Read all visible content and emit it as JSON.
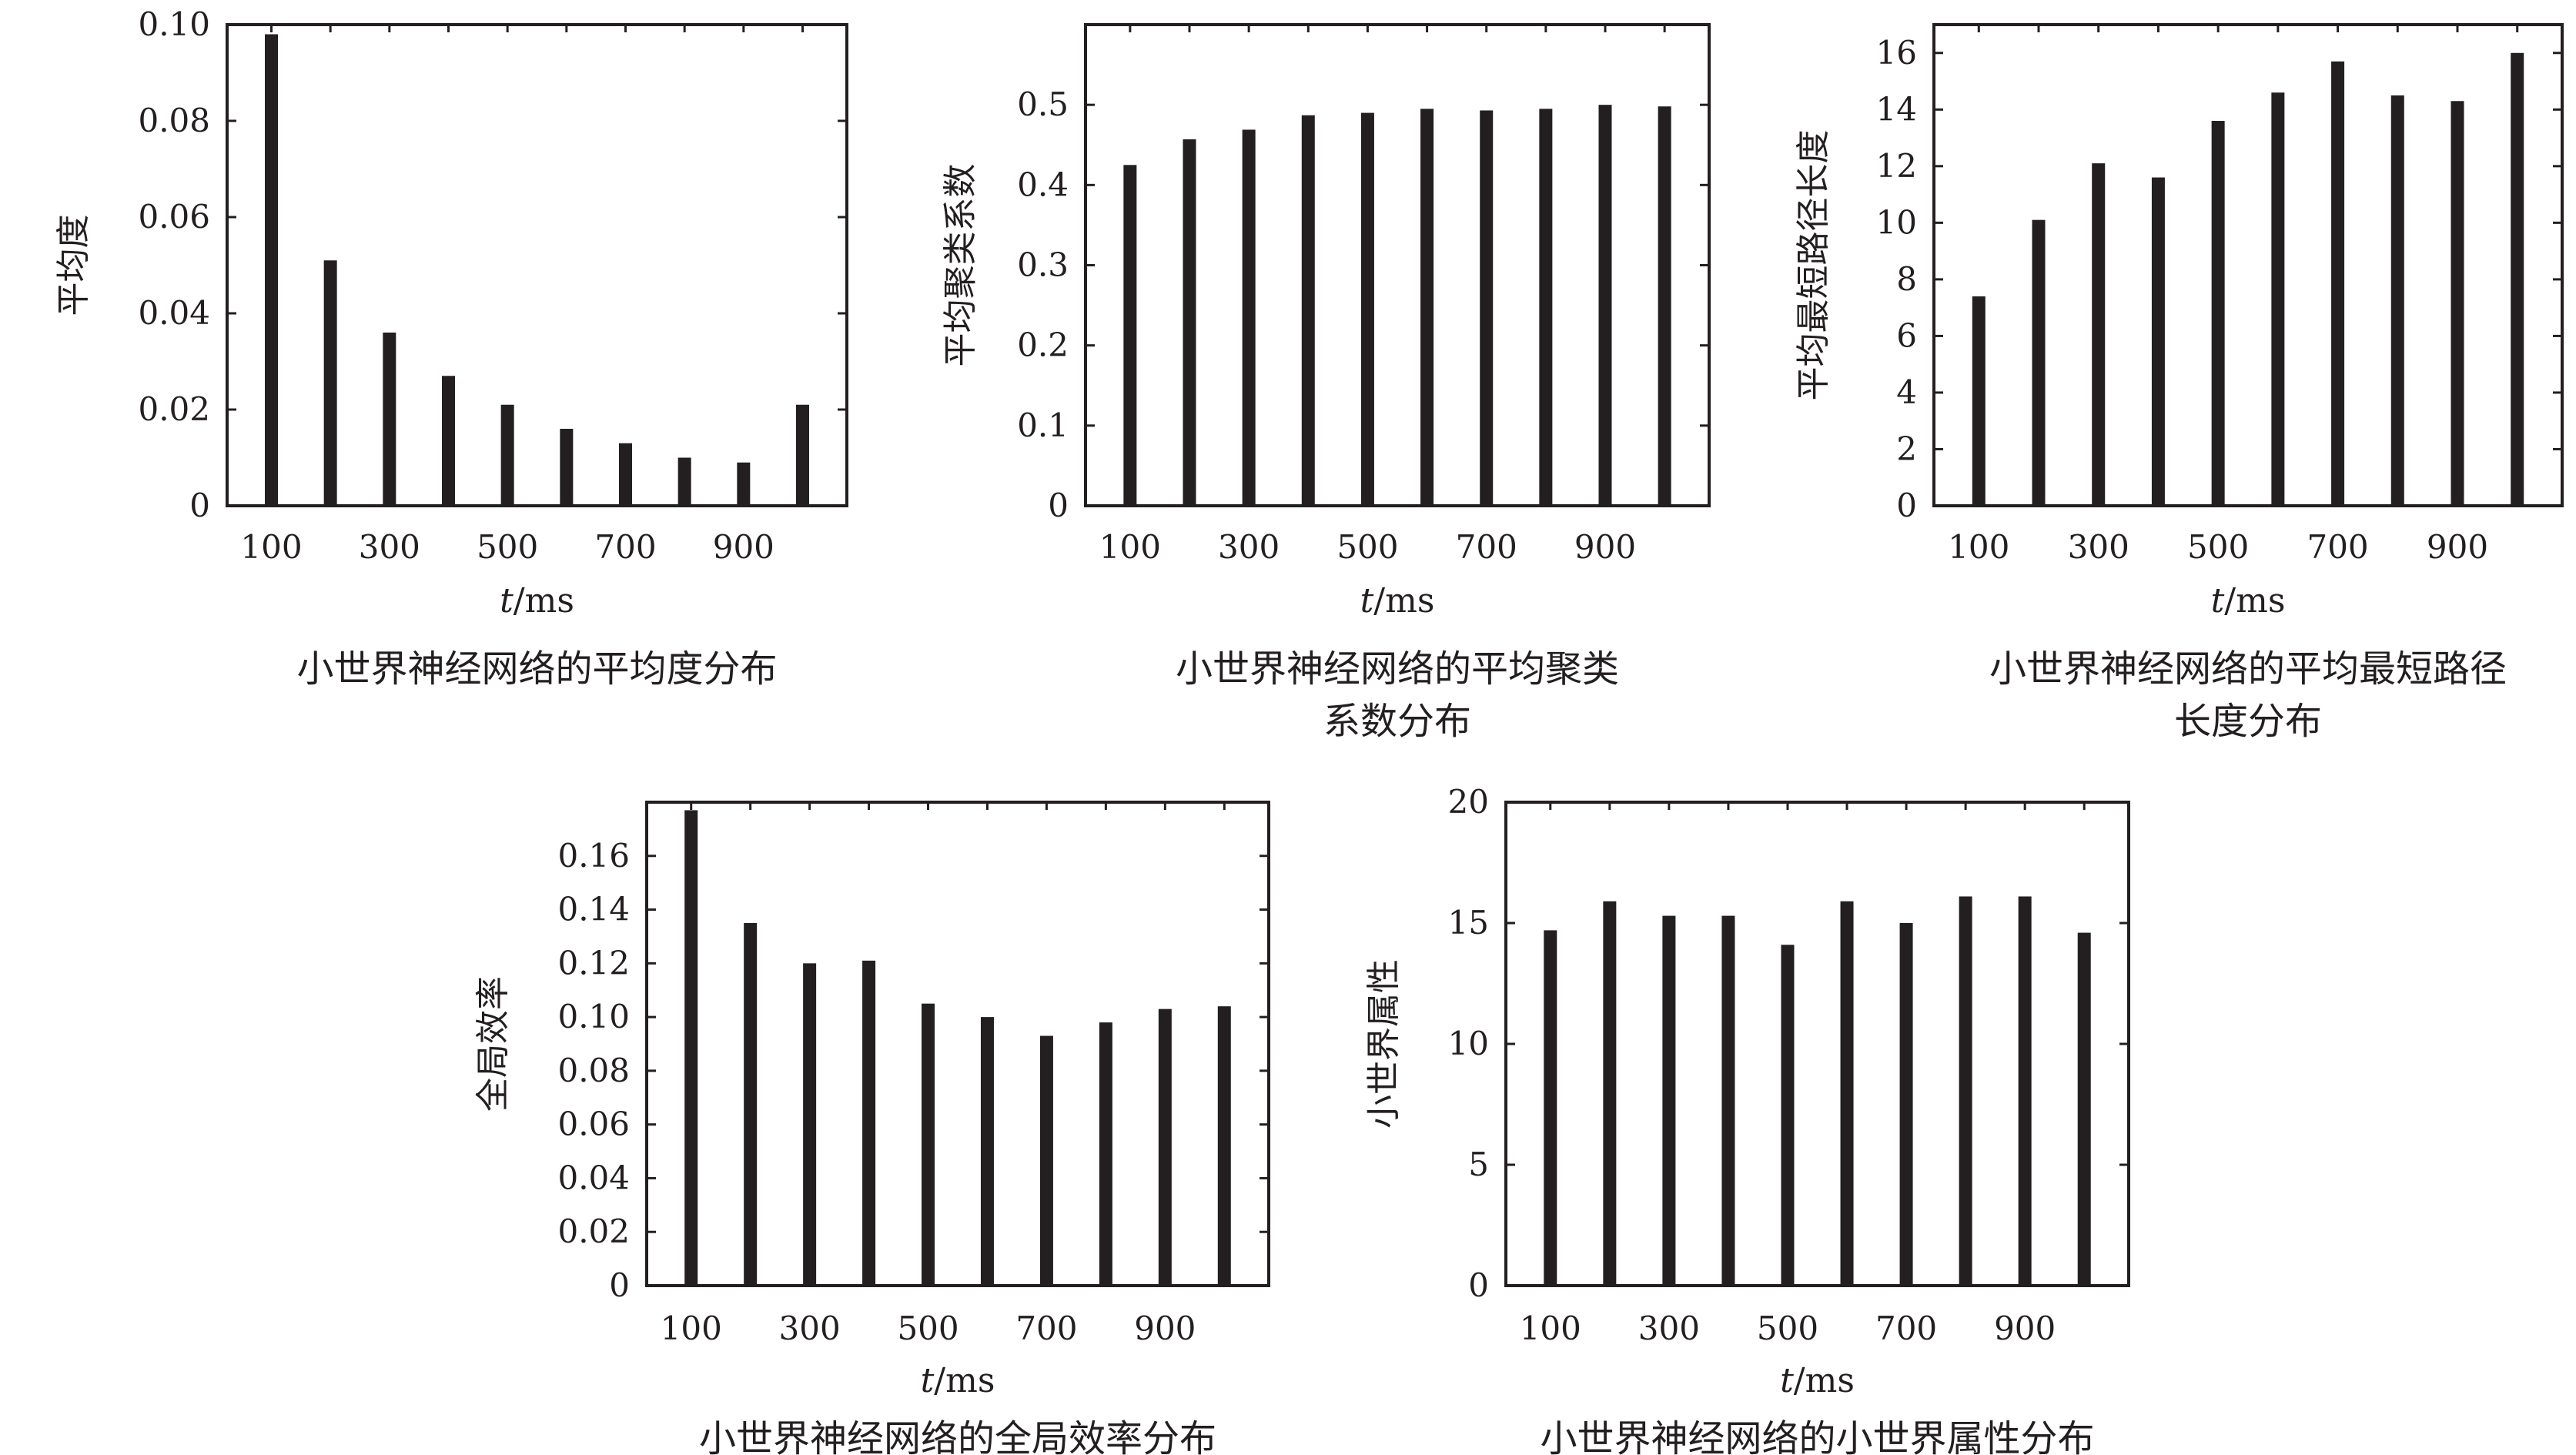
{
  "x_unit_label": {
    "t": "t",
    "unit": "/ms"
  },
  "chart_data": [
    {
      "type": "bar",
      "categories": [
        100,
        200,
        300,
        400,
        500,
        600,
        700,
        800,
        900,
        1000
      ],
      "values": [
        0.098,
        0.051,
        0.036,
        0.027,
        0.021,
        0.016,
        0.013,
        0.01,
        0.009,
        0.021
      ],
      "ylim": [
        0,
        0.1
      ],
      "yticks": [
        "0",
        "0.02",
        "0.04",
        "0.06",
        "0.08",
        "0.10"
      ],
      "xticks": [
        "100",
        "300",
        "500",
        "700",
        "900"
      ],
      "ylabel": "平均度",
      "caption": [
        "小世界神经网络的平均度分布"
      ],
      "grid": false
    },
    {
      "type": "bar",
      "categories": [
        100,
        200,
        300,
        400,
        500,
        600,
        700,
        800,
        900,
        1000
      ],
      "values": [
        0.425,
        0.457,
        0.469,
        0.487,
        0.49,
        0.495,
        0.493,
        0.495,
        0.5,
        0.498
      ],
      "ylim": [
        0,
        0.6
      ],
      "yticks": [
        "0",
        "0.1",
        "0.2",
        "0.3",
        "0.4",
        "0.5"
      ],
      "xticks": [
        "100",
        "300",
        "500",
        "700",
        "900"
      ],
      "ylabel": "平均聚类系数",
      "caption": [
        "小世界神经网络的平均聚类",
        "系数分布"
      ],
      "grid": false
    },
    {
      "type": "bar",
      "categories": [
        100,
        200,
        300,
        400,
        500,
        600,
        700,
        800,
        900,
        1000
      ],
      "values": [
        7.4,
        10.1,
        12.1,
        11.6,
        13.6,
        14.6,
        15.7,
        14.5,
        14.3,
        16.0
      ],
      "ylim": [
        0,
        17
      ],
      "yticks": [
        "0",
        "2",
        "4",
        "6",
        "8",
        "10",
        "12",
        "14",
        "16"
      ],
      "xticks": [
        "100",
        "300",
        "500",
        "700",
        "900"
      ],
      "ylabel": "平均最短路径长度",
      "caption": [
        "小世界神经网络的平均最短路径",
        "长度分布"
      ],
      "grid": false
    },
    {
      "type": "bar",
      "categories": [
        100,
        200,
        300,
        400,
        500,
        600,
        700,
        800,
        900,
        1000
      ],
      "values": [
        0.177,
        0.135,
        0.12,
        0.121,
        0.105,
        0.1,
        0.093,
        0.098,
        0.103,
        0.104
      ],
      "ylim": [
        0,
        0.18
      ],
      "yticks": [
        "0",
        "0.02",
        "0.04",
        "0.06",
        "0.08",
        "0.10",
        "0.12",
        "0.14",
        "0.16"
      ],
      "xticks": [
        "100",
        "300",
        "500",
        "700",
        "900"
      ],
      "ylabel": "全局效率",
      "caption": [
        "小世界神经网络的全局效率分布"
      ],
      "grid": false
    },
    {
      "type": "bar",
      "categories": [
        100,
        200,
        300,
        400,
        500,
        600,
        700,
        800,
        900,
        1000
      ],
      "values": [
        14.7,
        15.9,
        15.3,
        15.3,
        14.1,
        15.9,
        15.0,
        16.1,
        16.1,
        14.6
      ],
      "ylim": [
        0,
        20
      ],
      "yticks": [
        "0",
        "5",
        "10",
        "15",
        "20"
      ],
      "xticks": [
        "100",
        "300",
        "500",
        "700",
        "900"
      ],
      "ylabel": "小世界属性",
      "caption": [
        "小世界神经网络的小世界属性分布"
      ],
      "grid": false
    }
  ]
}
